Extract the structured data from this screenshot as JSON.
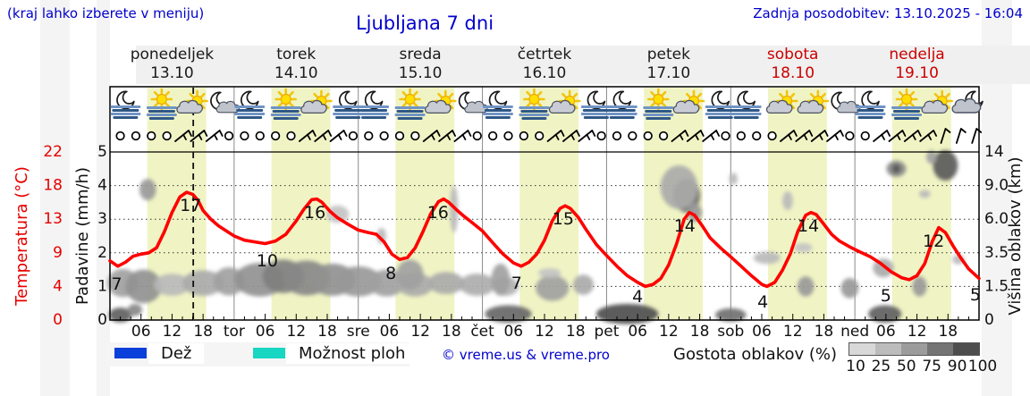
{
  "header": {
    "hint": "(kraj lahko izberete v meniju)",
    "title": "Ljubljana 7 dni",
    "updated": "Zadnja posodobitev: 13.10.2025 - 16:04"
  },
  "days": [
    {
      "name": "ponedeljek",
      "date": "13.10",
      "weekend": false
    },
    {
      "name": "torek",
      "date": "14.10",
      "weekend": false
    },
    {
      "name": "sreda",
      "date": "15.10",
      "weekend": false
    },
    {
      "name": "četrtek",
      "date": "16.10",
      "weekend": false
    },
    {
      "name": "petek",
      "date": "17.10",
      "weekend": false
    },
    {
      "name": "sobota",
      "date": "18.10",
      "weekend": true
    },
    {
      "name": "nedelja",
      "date": "19.10",
      "weekend": true
    }
  ],
  "axes": {
    "temp_title": "Temperatura (°C)",
    "temp_ticks": [
      "22",
      "18",
      "13",
      "9",
      "4",
      "0"
    ],
    "temp_color": "#e60000",
    "precip_title": "Padavine (mm/h)",
    "precip_ticks": [
      "5",
      "4",
      "3",
      "2",
      "1",
      "0"
    ],
    "cloud_title": "Višina oblakov (km)",
    "cloud_ticks": [
      "14",
      "9.0",
      "6.0",
      "3.5",
      "1.5",
      "0"
    ],
    "hour_labels": [
      "06",
      "12",
      "18"
    ],
    "day_abbrevs": [
      "tor",
      "sre",
      "čet",
      "pet",
      "sob",
      "ned"
    ]
  },
  "legend": {
    "rain_label": "Dež",
    "rain_color": "#0a3fd9",
    "showers_label": "Možnost ploh",
    "showers_color": "#17d6c2",
    "copyright": "© vreme.us & vreme.pro",
    "cloud_density_label": "Gostota oblakov (%)",
    "cloud_scale_values": [
      "10",
      "25",
      "50",
      "75",
      "90",
      "100"
    ],
    "cloud_scale_colors": [
      "#d8d8d8",
      "#bcbcbc",
      "#9c9c9c",
      "#747474",
      "#4d4d4d"
    ]
  },
  "chart_data": {
    "type": "line",
    "title": "Ljubljana 7 dni",
    "x_unit": "hours from Mon 13.10 00:00",
    "x_range": [
      0,
      168
    ],
    "temp_axis_ticks_c": [
      0,
      4,
      9,
      13,
      18,
      22
    ],
    "precip_axis_ticks_mmh": [
      0,
      1,
      2,
      3,
      4,
      5
    ],
    "cloud_height_ticks_km": [
      0,
      1.5,
      3.5,
      6.0,
      9.0,
      14
    ],
    "grid": "dotted-horizontal",
    "current_time_hour": 16.1,
    "daylight_hours": [
      7.2,
      18.6
    ],
    "daylight_band_color": "#f0f4c4",
    "series": [
      {
        "name": "Temperatura",
        "color": "#ff0000",
        "points": [
          [
            0,
            7.8
          ],
          [
            1.5,
            7.0
          ],
          [
            3,
            7.6
          ],
          [
            4.5,
            8.5
          ],
          [
            6,
            8.8
          ],
          [
            7.5,
            9.0
          ],
          [
            9,
            9.6
          ],
          [
            10.5,
            11.5
          ],
          [
            12,
            14
          ],
          [
            13.5,
            16.3
          ],
          [
            14.8,
            17
          ],
          [
            16,
            16.7
          ],
          [
            17,
            15.8
          ],
          [
            18,
            14.3
          ],
          [
            19.5,
            13
          ],
          [
            21,
            12.2
          ],
          [
            22.5,
            11.6
          ],
          [
            24,
            11
          ],
          [
            26,
            10.5
          ],
          [
            28,
            10.3
          ],
          [
            30,
            10.1
          ],
          [
            32,
            10.4
          ],
          [
            34,
            11.2
          ],
          [
            36,
            12.8
          ],
          [
            37.5,
            14.5
          ],
          [
            39,
            15.9
          ],
          [
            40,
            16
          ],
          [
            41,
            15.5
          ],
          [
            42.5,
            14.2
          ],
          [
            44,
            13.2
          ],
          [
            46,
            12.4
          ],
          [
            48,
            11.7
          ],
          [
            50,
            11.4
          ],
          [
            51.5,
            11.2
          ],
          [
            53,
            10.3
          ],
          [
            54.5,
            8.8
          ],
          [
            56,
            8.0
          ],
          [
            57.5,
            8.3
          ],
          [
            59,
            9.6
          ],
          [
            60.5,
            11.5
          ],
          [
            62,
            13.8
          ],
          [
            63.5,
            15.6
          ],
          [
            64.5,
            16
          ],
          [
            65.5,
            15.5
          ],
          [
            67,
            14.4
          ],
          [
            68.5,
            13.4
          ],
          [
            70,
            12.6
          ],
          [
            72,
            11.6
          ],
          [
            74,
            10.2
          ],
          [
            76,
            8.8
          ],
          [
            78,
            7.5
          ],
          [
            79.5,
            7.0
          ],
          [
            81,
            7.6
          ],
          [
            82.5,
            8.8
          ],
          [
            84,
            10.5
          ],
          [
            85.5,
            12.8
          ],
          [
            87,
            14.6
          ],
          [
            88,
            15
          ],
          [
            89,
            14.6
          ],
          [
            90.5,
            13.3
          ],
          [
            92,
            11.8
          ],
          [
            94,
            10
          ],
          [
            96,
            8.6
          ],
          [
            98,
            7
          ],
          [
            100,
            5.6
          ],
          [
            102,
            4.6
          ],
          [
            103.5,
            4.0
          ],
          [
            105,
            4.3
          ],
          [
            106.5,
            5.2
          ],
          [
            108,
            7.2
          ],
          [
            109.5,
            10
          ],
          [
            111,
            13
          ],
          [
            112,
            14
          ],
          [
            113,
            13.6
          ],
          [
            114.5,
            12.2
          ],
          [
            116,
            10.8
          ],
          [
            118,
            9.6
          ],
          [
            120,
            8.4
          ],
          [
            122,
            7
          ],
          [
            124,
            5.6
          ],
          [
            126,
            4.3
          ],
          [
            127,
            4.0
          ],
          [
            128.5,
            4.6
          ],
          [
            130,
            6.4
          ],
          [
            131.5,
            8.8
          ],
          [
            133,
            11.6
          ],
          [
            134.5,
            13.6
          ],
          [
            135.5,
            14
          ],
          [
            136.5,
            13.7
          ],
          [
            138,
            12.4
          ],
          [
            139.5,
            11.2
          ],
          [
            141,
            10.4
          ],
          [
            143,
            9.7
          ],
          [
            145,
            9.1
          ],
          [
            147,
            8.4
          ],
          [
            149,
            7.4
          ],
          [
            151,
            6.2
          ],
          [
            153,
            5.3
          ],
          [
            154.5,
            5.0
          ],
          [
            156,
            5.6
          ],
          [
            157.5,
            7.4
          ],
          [
            159,
            10.4
          ],
          [
            160.2,
            12
          ],
          [
            161.5,
            11.4
          ],
          [
            163,
            9.8
          ],
          [
            164.5,
            8.2
          ],
          [
            166,
            6.6
          ],
          [
            168,
            5.2
          ]
        ]
      }
    ],
    "temp_point_labels": [
      {
        "text": "7",
        "h": 1.3,
        "u": 1.06
      },
      {
        "text": "17",
        "h": 15.6,
        "u": 3.4
      },
      {
        "text": "10",
        "h": 30.4,
        "u": 1.76
      },
      {
        "text": "16",
        "h": 39.6,
        "u": 3.19
      },
      {
        "text": "8",
        "h": 54.3,
        "u": 1.38
      },
      {
        "text": "16",
        "h": 63.4,
        "u": 3.19
      },
      {
        "text": "7",
        "h": 78.6,
        "u": 1.09
      },
      {
        "text": "15",
        "h": 87.6,
        "u": 3.01
      },
      {
        "text": "4",
        "h": 102,
        "u": 0.69
      },
      {
        "text": "14",
        "h": 111.1,
        "u": 2.79
      },
      {
        "text": "4",
        "h": 126.2,
        "u": 0.53
      },
      {
        "text": "14",
        "h": 135,
        "u": 2.79
      },
      {
        "text": "5",
        "h": 150,
        "u": 0.72
      },
      {
        "text": "12",
        "h": 159.2,
        "u": 2.34
      },
      {
        "text": "5",
        "h": 167.3,
        "u": 0.74
      }
    ],
    "clouds": [
      {
        "h": 7.3,
        "u": 3.88,
        "rh": 1.6,
        "ru": 0.32,
        "d": 50
      },
      {
        "h": 2.5,
        "u": 1.1,
        "rh": 3.0,
        "ru": 0.42,
        "d": 45
      },
      {
        "h": 6.5,
        "u": 1.0,
        "rh": 3.5,
        "ru": 0.5,
        "d": 55
      },
      {
        "h": 12,
        "u": 1.05,
        "rh": 3.5,
        "ru": 0.33,
        "d": 30
      },
      {
        "h": 18,
        "u": 1.1,
        "rh": 4.0,
        "ru": 0.38,
        "d": 40
      },
      {
        "h": 23,
        "u": 1.15,
        "rh": 3.0,
        "ru": 0.42,
        "d": 45
      },
      {
        "h": 29,
        "u": 1.2,
        "rh": 5.0,
        "ru": 0.5,
        "d": 55
      },
      {
        "h": 33.5,
        "u": 1.3,
        "rh": 4.0,
        "ru": 0.5,
        "d": 65
      },
      {
        "h": 38,
        "u": 1.25,
        "rh": 4.5,
        "ru": 0.52,
        "d": 60
      },
      {
        "h": 43,
        "u": 1.2,
        "rh": 4.5,
        "ru": 0.48,
        "d": 55
      },
      {
        "h": 48,
        "u": 1.15,
        "rh": 4.5,
        "ru": 0.45,
        "d": 50
      },
      {
        "h": 53.5,
        "u": 1.1,
        "rh": 3.5,
        "ru": 0.4,
        "d": 45
      },
      {
        "h": 59,
        "u": 1.05,
        "rh": 3.5,
        "ru": 0.35,
        "d": 40
      },
      {
        "h": 65,
        "u": 1.1,
        "rh": 3.5,
        "ru": 0.33,
        "d": 40
      },
      {
        "h": 71,
        "u": 1.05,
        "rh": 3.5,
        "ru": 0.33,
        "d": 38
      },
      {
        "h": 76.5,
        "u": 1.0,
        "rh": 2.5,
        "ru": 0.28,
        "d": 35
      },
      {
        "h": 2,
        "u": 0.15,
        "rh": 2.2,
        "ru": 0.22,
        "d": 85
      },
      {
        "h": 4.8,
        "u": 0.3,
        "rh": 1.4,
        "ru": 0.18,
        "d": 60
      },
      {
        "h": 77,
        "u": 0.18,
        "rh": 4.5,
        "ru": 0.26,
        "d": 80
      },
      {
        "h": 100,
        "u": 0.18,
        "rh": 6.0,
        "ru": 0.3,
        "d": 95
      },
      {
        "h": 120,
        "u": 0.15,
        "rh": 3.0,
        "ru": 0.2,
        "d": 75
      },
      {
        "h": 149.8,
        "u": 0.18,
        "rh": 3.2,
        "ru": 0.26,
        "d": 85
      },
      {
        "h": 44,
        "u": 3.15,
        "rh": 2.2,
        "ru": 0.26,
        "d": 25
      },
      {
        "h": 52.5,
        "u": 2.5,
        "rh": 0.9,
        "ru": 0.24,
        "d": 30
      },
      {
        "h": 58,
        "u": 1.35,
        "rh": 2.6,
        "ru": 0.45,
        "d": 45
      },
      {
        "h": 66.5,
        "u": 3.3,
        "rh": 0.8,
        "ru": 0.7,
        "d": 30
      },
      {
        "h": 75.5,
        "u": 1.2,
        "rh": 1.8,
        "ru": 0.48,
        "d": 45
      },
      {
        "h": 85.5,
        "u": 0.95,
        "rh": 3.2,
        "ru": 0.38,
        "d": 45
      },
      {
        "h": 85,
        "u": 1.4,
        "rh": 2.2,
        "ru": 0.14,
        "d": 25
      },
      {
        "h": 91.5,
        "u": 1.05,
        "rh": 2.0,
        "ru": 0.3,
        "d": 40
      },
      {
        "h": 111.5,
        "u": 3.7,
        "rh": 2.6,
        "ru": 0.5,
        "d": 75
      },
      {
        "h": 110,
        "u": 3.95,
        "rh": 3.6,
        "ru": 0.65,
        "d": 40
      },
      {
        "h": 113,
        "u": 3.2,
        "rh": 1.4,
        "ru": 0.28,
        "d": 50
      },
      {
        "h": 120.5,
        "u": 4.2,
        "rh": 0.8,
        "ru": 0.18,
        "d": 30
      },
      {
        "h": 131,
        "u": 3.55,
        "rh": 1.0,
        "ru": 0.28,
        "d": 30
      },
      {
        "h": 134,
        "u": 2.15,
        "rh": 1.8,
        "ru": 0.14,
        "d": 25
      },
      {
        "h": 127,
        "u": 1.85,
        "rh": 2.6,
        "ru": 0.18,
        "d": 30
      },
      {
        "h": 134.5,
        "u": 1.0,
        "rh": 1.6,
        "ru": 0.3,
        "d": 50
      },
      {
        "h": 143,
        "u": 0.95,
        "rh": 1.7,
        "ru": 0.3,
        "d": 50
      },
      {
        "h": 149.5,
        "u": 1.55,
        "rh": 2.0,
        "ru": 0.28,
        "d": 40
      },
      {
        "h": 152,
        "u": 4.5,
        "rh": 1.9,
        "ru": 0.24,
        "d": 60
      },
      {
        "h": 152,
        "u": 4.5,
        "rh": 0.8,
        "ru": 0.14,
        "d": 90
      },
      {
        "h": 157.5,
        "u": 3.75,
        "rh": 1.1,
        "ru": 0.12,
        "d": 30
      },
      {
        "h": 161.5,
        "u": 4.6,
        "rh": 2.4,
        "ru": 0.45,
        "d": 88
      },
      {
        "h": 158.8,
        "u": 4.85,
        "rh": 1.0,
        "ru": 0.2,
        "d": 45
      },
      {
        "h": 164,
        "u": 1.8,
        "rh": 1.2,
        "ru": 0.14,
        "d": 30
      },
      {
        "h": 156.5,
        "u": 1.0,
        "rh": 1.4,
        "ru": 0.3,
        "d": 50
      }
    ],
    "weather_icons": [
      {
        "h": 3,
        "type": "moon-fog"
      },
      {
        "h": 10,
        "type": "sun-fog"
      },
      {
        "h": 16,
        "type": "sun-cloud"
      },
      {
        "h": 22,
        "type": "moon-cloud"
      },
      {
        "h": 27,
        "type": "moon-fog"
      },
      {
        "h": 34,
        "type": "sun-fog"
      },
      {
        "h": 40,
        "type": "sun-cloud"
      },
      {
        "h": 46,
        "type": "moon-fog"
      },
      {
        "h": 51,
        "type": "moon-fog"
      },
      {
        "h": 58,
        "type": "sun-fog"
      },
      {
        "h": 64,
        "type": "sun-cloud"
      },
      {
        "h": 70,
        "type": "moon-cloud"
      },
      {
        "h": 75,
        "type": "moon-fog"
      },
      {
        "h": 82,
        "type": "sun-fog"
      },
      {
        "h": 88,
        "type": "sun-cloud"
      },
      {
        "h": 94,
        "type": "moon-fog"
      },
      {
        "h": 99,
        "type": "moon-fog"
      },
      {
        "h": 106,
        "type": "sun-fog"
      },
      {
        "h": 112,
        "type": "sun-cloud"
      },
      {
        "h": 118,
        "type": "moon-fog"
      },
      {
        "h": 123,
        "type": "moon-fog"
      },
      {
        "h": 130,
        "type": "sun-cloud"
      },
      {
        "h": 136,
        "type": "sun-cloud"
      },
      {
        "h": 142,
        "type": "moon-cloud"
      },
      {
        "h": 147,
        "type": "moon-fog"
      },
      {
        "h": 154,
        "type": "sun-fog"
      },
      {
        "h": 160,
        "type": "sun-cloud"
      },
      {
        "h": 166,
        "type": "cloud-moon"
      }
    ],
    "wind_symbols": [
      {
        "h": 2,
        "t": "c"
      },
      {
        "h": 5,
        "t": "c"
      },
      {
        "h": 8,
        "t": "c"
      },
      {
        "h": 11,
        "t": "c"
      },
      {
        "h": 14,
        "t": "b"
      },
      {
        "h": 17,
        "t": "b"
      },
      {
        "h": 20,
        "t": "b"
      },
      {
        "h": 23,
        "t": "c"
      },
      {
        "h": 26,
        "t": "c"
      },
      {
        "h": 29,
        "t": "c"
      },
      {
        "h": 32,
        "t": "c"
      },
      {
        "h": 35,
        "t": "c"
      },
      {
        "h": 38,
        "t": "b"
      },
      {
        "h": 41,
        "t": "b"
      },
      {
        "h": 44,
        "t": "b"
      },
      {
        "h": 47,
        "t": "c"
      },
      {
        "h": 50,
        "t": "c"
      },
      {
        "h": 53,
        "t": "c"
      },
      {
        "h": 56,
        "t": "c"
      },
      {
        "h": 59,
        "t": "c"
      },
      {
        "h": 62,
        "t": "b"
      },
      {
        "h": 65,
        "t": "b"
      },
      {
        "h": 68,
        "t": "b"
      },
      {
        "h": 71,
        "t": "c"
      },
      {
        "h": 74,
        "t": "c"
      },
      {
        "h": 77,
        "t": "c"
      },
      {
        "h": 80,
        "t": "c"
      },
      {
        "h": 83,
        "t": "c"
      },
      {
        "h": 86,
        "t": "b"
      },
      {
        "h": 89,
        "t": "b"
      },
      {
        "h": 92,
        "t": "b"
      },
      {
        "h": 95,
        "t": "c"
      },
      {
        "h": 98,
        "t": "c"
      },
      {
        "h": 101,
        "t": "c"
      },
      {
        "h": 104,
        "t": "c"
      },
      {
        "h": 107,
        "t": "c"
      },
      {
        "h": 110,
        "t": "b"
      },
      {
        "h": 113,
        "t": "b"
      },
      {
        "h": 116,
        "t": "b"
      },
      {
        "h": 119,
        "t": "c"
      },
      {
        "h": 122,
        "t": "c"
      },
      {
        "h": 125,
        "t": "c"
      },
      {
        "h": 128,
        "t": "c"
      },
      {
        "h": 131,
        "t": "b"
      },
      {
        "h": 134,
        "t": "b"
      },
      {
        "h": 137,
        "t": "b"
      },
      {
        "h": 140,
        "t": "b"
      },
      {
        "h": 143,
        "t": "c"
      },
      {
        "h": 146,
        "t": "c"
      },
      {
        "h": 149,
        "t": "b"
      },
      {
        "h": 152,
        "t": "b"
      },
      {
        "h": 155,
        "t": "b"
      },
      {
        "h": 158,
        "t": "b"
      },
      {
        "h": 161,
        "t": "s"
      },
      {
        "h": 164,
        "t": "s"
      },
      {
        "h": 167,
        "t": "s"
      }
    ]
  }
}
